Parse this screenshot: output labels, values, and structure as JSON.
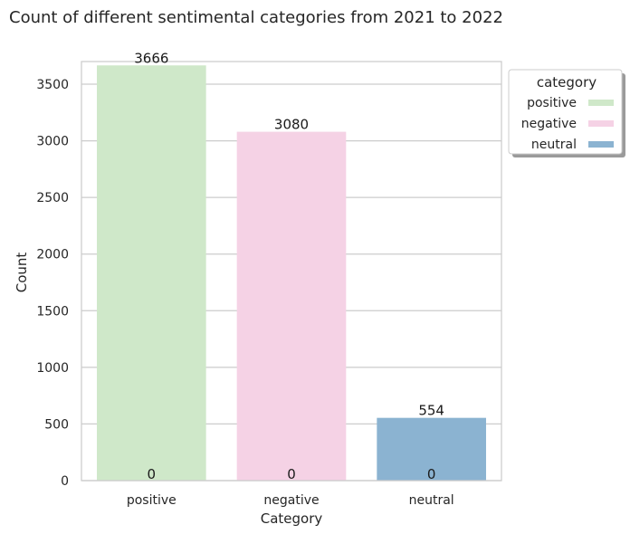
{
  "chart_data": {
    "type": "bar",
    "title": "Count of different sentimental categories from 2021 to 2022",
    "xlabel": "Category",
    "ylabel": "Count",
    "categories": [
      "positive",
      "negative",
      "neutral"
    ],
    "values": [
      3666,
      3080,
      554
    ],
    "base_labels": [
      "0",
      "0",
      "0"
    ],
    "colors": [
      "#cfe8c9",
      "#f5d2e5",
      "#8bb3d1"
    ],
    "ylim": [
      0,
      3700
    ],
    "yticks": [
      0,
      500,
      1000,
      1500,
      2000,
      2500,
      3000,
      3500
    ],
    "grid": true,
    "legend": {
      "title": "category",
      "placement": "outside-top-right",
      "entries": [
        "positive",
        "negative",
        "neutral"
      ]
    }
  }
}
